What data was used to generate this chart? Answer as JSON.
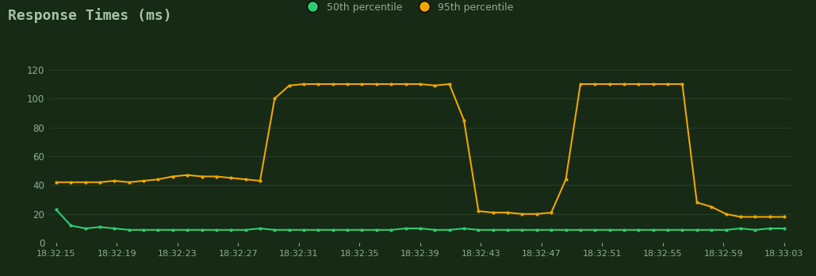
{
  "title": "Response Times (ms)",
  "background_color": "#162a16",
  "plot_bg_color": "#162a16",
  "text_color": "#8fad8f",
  "title_color": "#a8c4a8",
  "p50_color": "#2ecc71",
  "p95_color": "#f0a500",
  "p50_label": "50th percentile",
  "p95_label": "95th percentile",
  "ylim": [
    0,
    130
  ],
  "yticks": [
    0,
    20,
    40,
    60,
    80,
    100,
    120
  ],
  "x_labels": [
    "18:32:15",
    "18:32:19",
    "18:32:23",
    "18:32:27",
    "18:32:31",
    "18:32:35",
    "18:32:39",
    "18:32:43",
    "18:32:47",
    "18:32:51",
    "18:32:55",
    "18:32:59",
    "18:33:03"
  ],
  "p50_values": [
    23,
    12,
    10,
    11,
    10,
    9,
    9,
    9,
    9,
    9,
    9,
    9,
    9,
    9,
    10,
    9,
    9,
    9,
    9,
    9,
    9,
    9,
    9,
    9,
    10,
    10,
    9,
    9,
    10,
    9,
    9,
    9,
    9,
    9,
    9,
    9,
    9,
    9,
    9,
    9,
    9,
    9,
    9,
    9,
    9,
    9,
    9,
    10,
    9,
    10,
    10
  ],
  "p95_values": [
    42,
    42,
    42,
    42,
    43,
    42,
    43,
    44,
    46,
    47,
    46,
    46,
    45,
    44,
    43,
    100,
    109,
    110,
    110,
    110,
    110,
    110,
    110,
    110,
    110,
    110,
    109,
    110,
    85,
    22,
    21,
    21,
    20,
    20,
    21,
    44,
    110,
    110,
    110,
    110,
    110,
    110,
    110,
    110,
    28,
    25,
    20,
    18,
    18,
    18,
    18
  ],
  "n_points": 51,
  "line_width": 1.5,
  "marker_size": 3
}
